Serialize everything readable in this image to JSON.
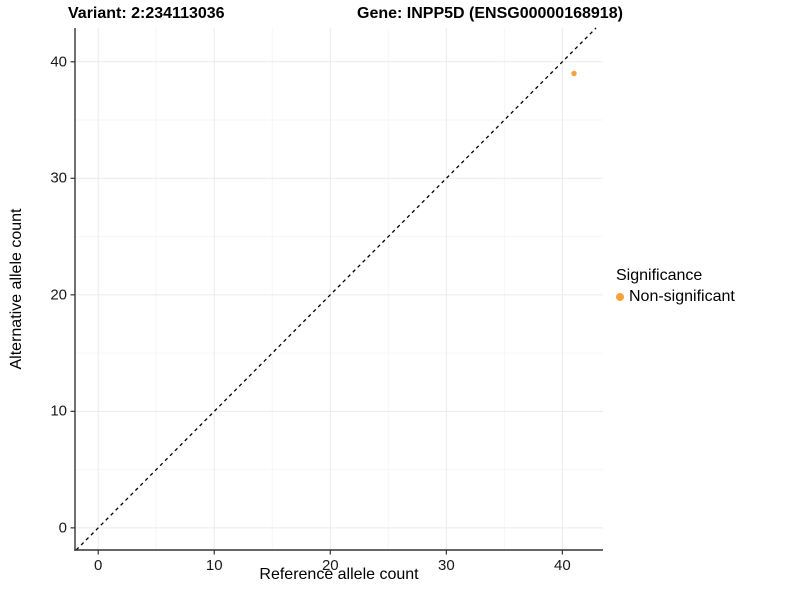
{
  "title": {
    "variant": "Variant: 2:234113036",
    "gene": "Gene: INPP5D (ENSG00000168918)"
  },
  "chart_data": {
    "type": "scatter",
    "title": "Variant: 2:234113036   Gene: INPP5D (ENSG00000168918)",
    "xlabel": "Reference allele count",
    "ylabel": "Alternative allele count",
    "xlim": [
      -2,
      43.5
    ],
    "ylim": [
      -1.9,
      42.9
    ],
    "x_ticks": [
      0,
      10,
      20,
      30,
      40
    ],
    "y_ticks": [
      0,
      10,
      20,
      30,
      40
    ],
    "x_minor_gridlines": [
      5,
      15,
      25,
      35
    ],
    "y_minor_gridlines": [
      5,
      15,
      25,
      35
    ],
    "grid": "major+minor",
    "series": [
      {
        "name": "Non-significant",
        "color": "#F9A13C",
        "points": [
          {
            "x": 41,
            "y": 39
          }
        ]
      }
    ],
    "reference_line": {
      "type": "identity y=x",
      "style": "dashed",
      "color": "#000000"
    },
    "legend": {
      "title": "Significance",
      "position": "right",
      "items": [
        {
          "label": "Non-significant",
          "color": "#F9A13C",
          "marker": "circle"
        }
      ]
    }
  },
  "colors": {
    "background": "#FFFFFF",
    "axis_line": "#333333",
    "tick_mark": "#333333",
    "tick_label": "#1A1A1A",
    "grid_major": "#EBEBEB",
    "grid_minor": "#F6F6F6"
  }
}
